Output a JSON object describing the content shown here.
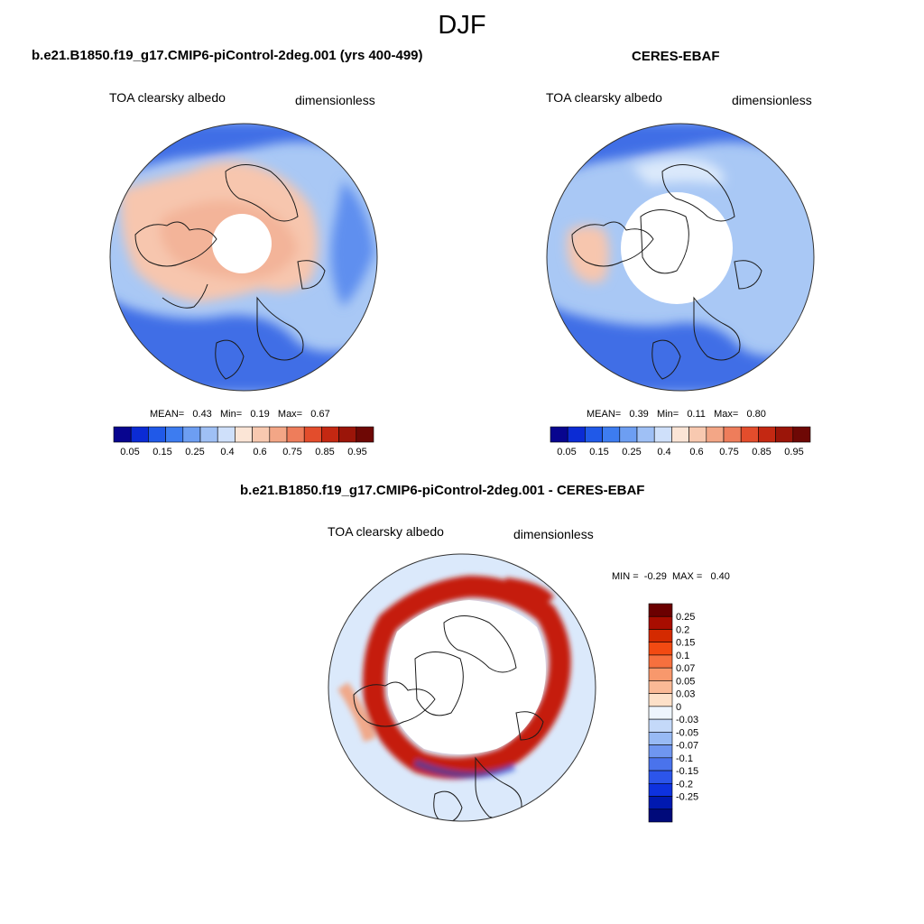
{
  "season": "DJF",
  "colors": {
    "ocean_deep": "#3f6ee6",
    "ocean_mid": "#5e8fef",
    "ocean_light": "#a9c8f5",
    "ocean_pale": "#dbe9fb",
    "land_warm": "#f7c6ae",
    "land_warmer": "#f0a98a",
    "coast": "#1a1a1a",
    "diff_pos": "#c51b0d",
    "diff_neg": "#2a4fd8"
  },
  "panels": {
    "model": {
      "title": "b.e21.B1850.f19_g17.CMIP6-piControl-2deg.001 (yrs 400-499)",
      "variable": "TOA clearsky albedo",
      "units": "dimensionless",
      "stats": {
        "mean_label": "MEAN=",
        "mean": "0.43",
        "min_label": "Min=",
        "min": "0.19",
        "max_label": "Max=",
        "max": "0.67"
      }
    },
    "obs": {
      "title": "CERES-EBAF",
      "variable": "TOA clearsky albedo",
      "units": "dimensionless",
      "stats": {
        "mean_label": "MEAN=",
        "mean": "0.39",
        "min_label": "Min=",
        "min": "0.11",
        "max_label": "Max=",
        "max": "0.80"
      }
    },
    "diff": {
      "title": "b.e21.B1850.f19_g17.CMIP6-piControl-2deg.001 - CERES-EBAF",
      "variable": "TOA clearsky albedo",
      "units": "dimensionless",
      "stats": {
        "min_label": "MIN =",
        "min": "-0.29",
        "max_label": "MAX =",
        "max": "0.40"
      }
    }
  },
  "chart_data": [
    {
      "type": "heatmap",
      "projection": "north-polar-stereographic",
      "title": "b.e21.B1850.f19_g17.CMIP6-piControl-2deg.001 (yrs 400-499)",
      "variable": "TOA clearsky albedo",
      "units": "dimensionless",
      "mean": 0.43,
      "min": 0.19,
      "max": 0.67,
      "colorbar": {
        "colors": [
          "#08058f",
          "#0b2bd4",
          "#2059e8",
          "#3d7cf0",
          "#6d9ef2",
          "#9fc0f5",
          "#cfe0fa",
          "#fbe5d6",
          "#f8c9b0",
          "#f3a686",
          "#ee7d5b",
          "#e34d2c",
          "#c42812",
          "#9b1509",
          "#6e0805"
        ],
        "tick_labels": [
          "0.05",
          "0.15",
          "0.25",
          "0.4",
          "0.6",
          "0.75",
          "0.85",
          "0.95"
        ]
      }
    },
    {
      "type": "heatmap",
      "projection": "north-polar-stereographic",
      "title": "CERES-EBAF",
      "variable": "TOA clearsky albedo",
      "units": "dimensionless",
      "mean": 0.39,
      "min": 0.11,
      "max": 0.8,
      "colorbar": {
        "colors": [
          "#08058f",
          "#0b2bd4",
          "#2059e8",
          "#3d7cf0",
          "#6d9ef2",
          "#9fc0f5",
          "#cfe0fa",
          "#fbe5d6",
          "#f8c9b0",
          "#f3a686",
          "#ee7d5b",
          "#e34d2c",
          "#c42812",
          "#9b1509",
          "#6e0805"
        ],
        "tick_labels": [
          "0.05",
          "0.15",
          "0.25",
          "0.4",
          "0.6",
          "0.75",
          "0.85",
          "0.95"
        ]
      }
    },
    {
      "type": "heatmap",
      "projection": "north-polar-stereographic",
      "title": "b.e21.B1850.f19_g17.CMIP6-piControl-2deg.001 - CERES-EBAF",
      "variable": "TOA clearsky albedo",
      "units": "dimensionless",
      "min": -0.29,
      "max": 0.4,
      "colorbar": {
        "orientation": "vertical",
        "colors_top_to_bottom": [
          "#6b0000",
          "#a80d00",
          "#d42a00",
          "#f24a12",
          "#f6703e",
          "#f8986c",
          "#fab996",
          "#fde0c8",
          "#eef5fd",
          "#c4d9f9",
          "#98baf4",
          "#6f96f0",
          "#4a73ec",
          "#2c55ea",
          "#0e32df",
          "#0019b0",
          "#000a7a"
        ],
        "tick_labels": [
          "0.25",
          "0.2",
          "0.15",
          "0.1",
          "0.07",
          "0.05",
          "0.03",
          "0",
          "-0.03",
          "-0.05",
          "-0.07",
          "-0.1",
          "-0.15",
          "-0.2",
          "-0.25"
        ]
      }
    }
  ]
}
